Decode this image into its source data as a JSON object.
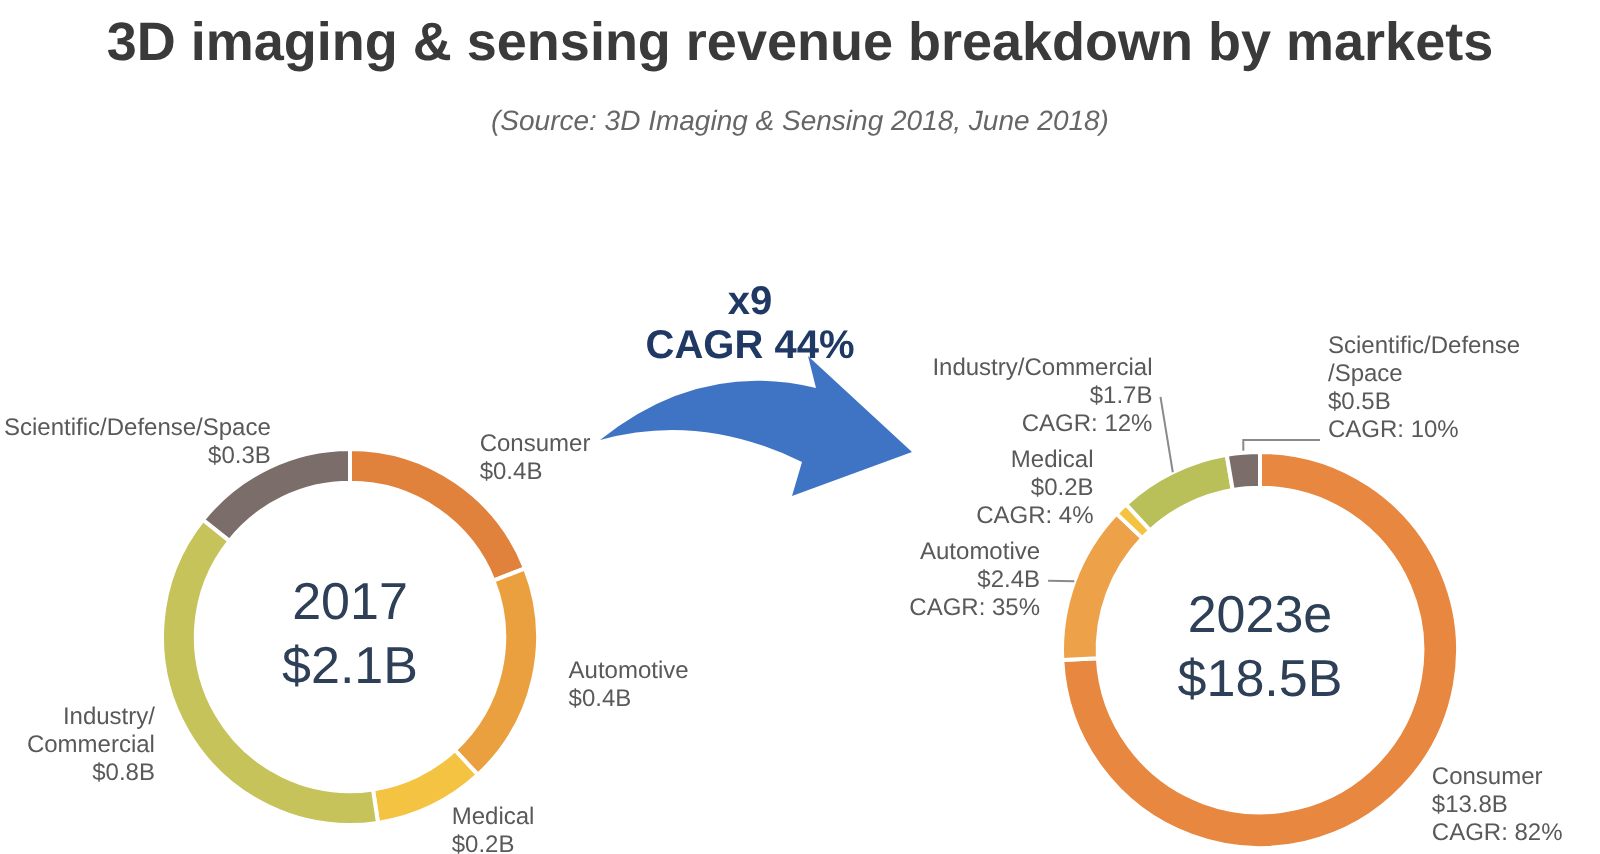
{
  "chart_data": [
    {
      "type": "donut",
      "title": "3D imaging & sensing revenue breakdown by markets",
      "subtitle": "(Source: 3D Imaging & Sensing 2018, June 2018)",
      "categories": [
        "Consumer",
        "Automotive",
        "Medical",
        "Industry/\nCommercial",
        "Scientific/Defense/Space"
      ],
      "values": [
        0.4,
        0.4,
        0.2,
        0.8,
        0.3
      ],
      "colors": [
        "#e0823c",
        "#eba040",
        "#f5c342",
        "#c5c35a",
        "#7b6e6a"
      ],
      "value_labels": [
        "$0.4B",
        "$0.4B",
        "$0.2B",
        "$0.8B",
        "$0.3B"
      ],
      "annotations": [
        "2017\n$2.1B",
        "x9\nCAGR 44%"
      ]
    },
    {
      "type": "donut",
      "categories": [
        "Consumer",
        "Automotive",
        "Medical",
        "Industry/Commercial",
        "Scientific/Defense\n/Space"
      ],
      "values": [
        13.8,
        2.4,
        0.2,
        1.7,
        0.5
      ],
      "colors": [
        "#e8873f",
        "#eda24a",
        "#f5c342",
        "#b9c05a",
        "#7b6e6a"
      ],
      "value_labels": [
        "$13.8B",
        "$2.4B",
        "$0.2B",
        "$1.7B",
        "$0.5B"
      ],
      "annotations": [
        "2023e\n$18.5B",
        "CAGR: 82%",
        "CAGR: 35%",
        "CAGR: 4%",
        "CAGR: 12%",
        "CAGR: 10%"
      ]
    }
  ]
}
